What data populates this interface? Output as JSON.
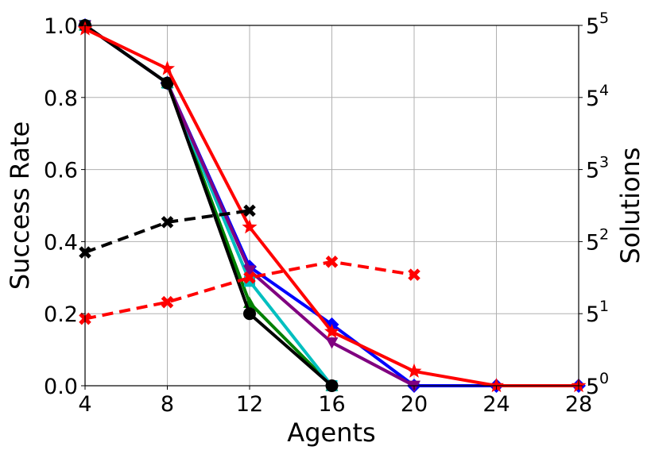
{
  "chart_data": {
    "type": "line",
    "xlabel": "Agents",
    "ylabel_left": "Success Rate",
    "ylabel_right": "Solutions",
    "xlim": [
      4,
      28
    ],
    "ylim_left": [
      0,
      1.0
    ],
    "ylim_right_exponent": [
      0,
      5
    ],
    "right_axis_scale": "log base 5",
    "grid": true,
    "x_ticks": [
      "4",
      "8",
      "12",
      "16",
      "20",
      "24",
      "28"
    ],
    "y_left_ticks": [
      "0.0",
      "0.2",
      "0.4",
      "0.6",
      "0.8",
      "1.0"
    ],
    "y_right_ticks": [
      {
        "base": "5",
        "exp": "0"
      },
      {
        "base": "5",
        "exp": "1"
      },
      {
        "base": "5",
        "exp": "2"
      },
      {
        "base": "5",
        "exp": "3"
      },
      {
        "base": "5",
        "exp": "4"
      },
      {
        "base": "5",
        "exp": "5"
      }
    ],
    "series": [
      {
        "color": "#0000ff",
        "marker": "diamond",
        "axis": "left",
        "dashed": false,
        "x": [
          4,
          8,
          12,
          16,
          20,
          24,
          28
        ],
        "y": [
          1.0,
          0.84,
          0.33,
          0.17,
          0.0,
          0.0,
          0.0
        ]
      },
      {
        "color": "#008000",
        "marker": "triangle-up",
        "axis": "left",
        "dashed": false,
        "x": [
          4,
          8,
          12,
          16
        ],
        "y": [
          1.0,
          0.84,
          0.23,
          0.0
        ]
      },
      {
        "color": "#00bfbf",
        "marker": "square",
        "axis": "left",
        "dashed": false,
        "x": [
          4,
          8,
          12,
          16
        ],
        "y": [
          1.0,
          0.84,
          0.29,
          0.0
        ]
      },
      {
        "color": "#800080",
        "marker": "triangle-down",
        "axis": "left",
        "dashed": false,
        "x": [
          4,
          8,
          12,
          16,
          20
        ],
        "y": [
          1.0,
          0.84,
          0.32,
          0.12,
          0.0
        ]
      },
      {
        "color": "#000000",
        "marker": "circle",
        "axis": "left",
        "dashed": false,
        "x": [
          4,
          8,
          12,
          16
        ],
        "y": [
          1.0,
          0.84,
          0.2,
          0.0
        ]
      },
      {
        "color": "#ff0000",
        "marker": "star",
        "axis": "left",
        "dashed": false,
        "x": [
          4,
          8,
          12,
          16,
          20,
          24,
          28
        ],
        "y": [
          0.99,
          0.88,
          0.44,
          0.15,
          0.04,
          0.0,
          0.0
        ]
      },
      {
        "color": "#000000",
        "marker": "x",
        "axis": "right",
        "dashed": true,
        "x": [
          4,
          8,
          12
        ],
        "y_exponent": [
          1.85,
          2.27,
          2.43
        ]
      },
      {
        "color": "#ff0000",
        "marker": "x",
        "axis": "right",
        "dashed": true,
        "x": [
          4,
          8,
          12,
          16,
          20
        ],
        "y_exponent": [
          0.93,
          1.16,
          1.5,
          1.72,
          1.54
        ]
      }
    ]
  }
}
